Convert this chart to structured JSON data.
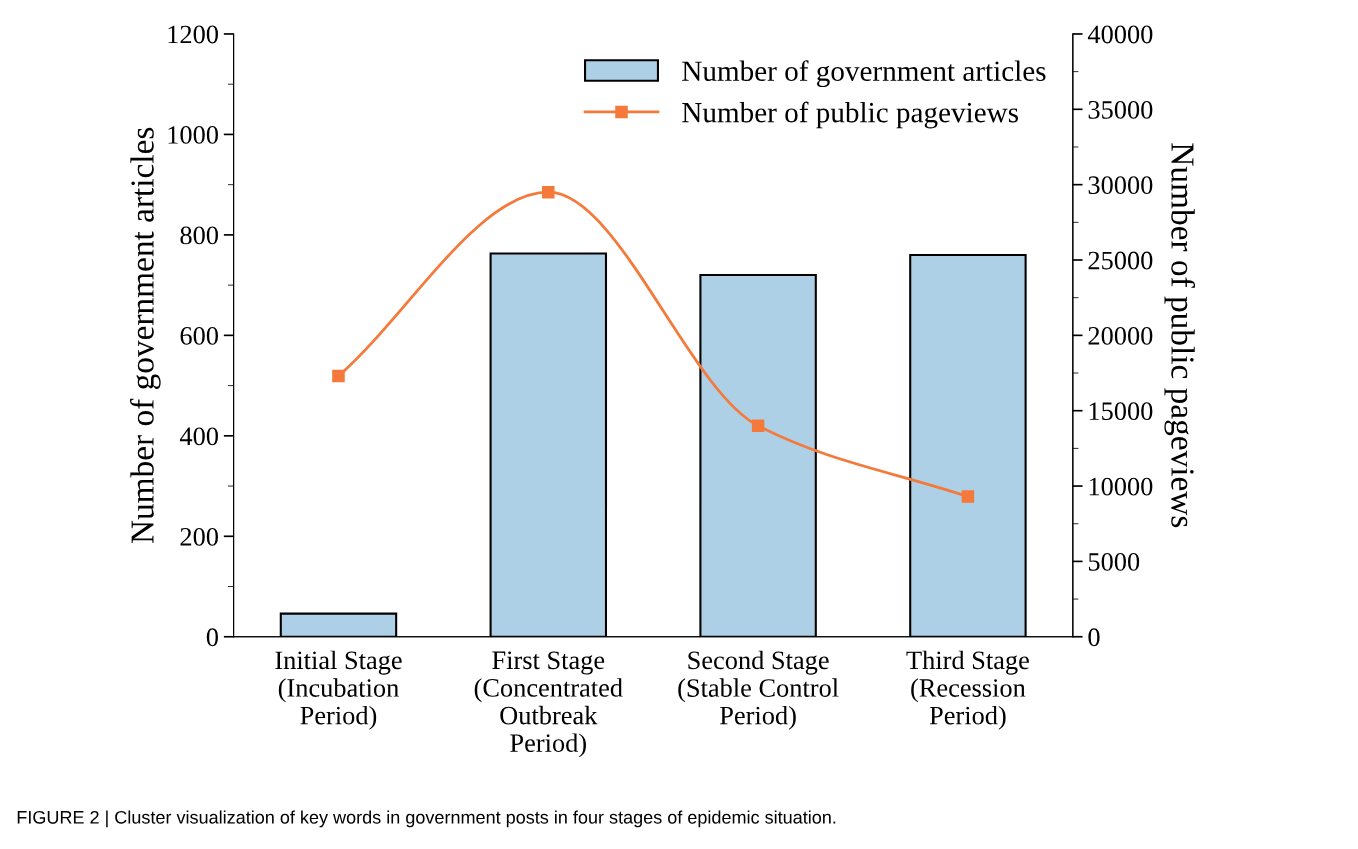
{
  "chart_data": {
    "type": "bar",
    "categories": [
      "Initial Stage\n(Incubation\nPeriod)",
      "First Stage\n(Concentrated\nOutbreak\nPeriod)",
      "Second Stage\n(Stable Control\nPeriod)",
      "Third Stage\n(Recession\nPeriod)"
    ],
    "series": [
      {
        "name": "Number of government articles",
        "color": "#aed0e6",
        "values": [
          46,
          763,
          720,
          760
        ]
      },
      {
        "name": "Number of public pageviews",
        "type": "line",
        "axis": "y2",
        "color": "#f4793b",
        "marker": "square",
        "line_style": "solid",
        "values": [
          17300,
          29500,
          14000,
          9300
        ]
      }
    ],
    "ylabel": "Number of government articles",
    "y2label": "Number of public pageviews",
    "ylim": [
      0,
      1200
    ],
    "yticks": [
      0,
      200,
      400,
      600,
      800,
      1000,
      1200
    ],
    "y2lim": [
      0,
      40000
    ],
    "y2ticks": [
      0,
      5000,
      10000,
      15000,
      20000,
      25000,
      30000,
      35000,
      40000
    ],
    "legend": "top right",
    "grid": false,
    "annotations": [
      "FIGURE 2 | Cluster visualization of key words in government posts in four stages of epidemic situation."
    ]
  }
}
